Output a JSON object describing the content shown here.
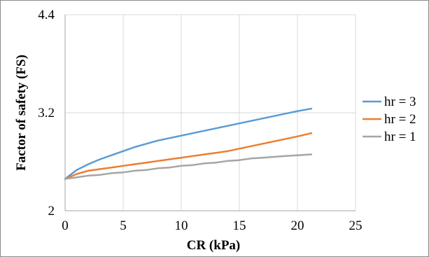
{
  "chart_data": {
    "type": "line",
    "xlabel": "CR (kPa)",
    "ylabel": "Factor of safety (FS)",
    "xlim": [
      0,
      25
    ],
    "ylim": [
      2,
      4.4
    ],
    "x_ticks": [
      "0",
      "5",
      "10",
      "15",
      "20",
      "25"
    ],
    "y_ticks": [
      "2",
      "3.2",
      "4.4"
    ],
    "x_tick_values": [
      0,
      5,
      10,
      15,
      20,
      25
    ],
    "y_tick_values": [
      2,
      3.2,
      4.4
    ],
    "grid": true,
    "legend_position": "right",
    "series": [
      {
        "name": "hr = 3",
        "color": "#5b9bd5",
        "x": [
          0,
          1,
          2,
          3,
          4,
          5,
          6,
          7,
          8,
          9,
          10,
          11,
          12,
          13,
          14,
          15,
          16,
          17,
          18,
          19,
          20,
          21.2
        ],
        "y": [
          2.39,
          2.5,
          2.57,
          2.63,
          2.68,
          2.73,
          2.78,
          2.82,
          2.86,
          2.89,
          2.92,
          2.95,
          2.98,
          3.01,
          3.04,
          3.07,
          3.1,
          3.13,
          3.16,
          3.19,
          3.22,
          3.25
        ]
      },
      {
        "name": "hr = 2",
        "color": "#ed7d31",
        "x": [
          0,
          1,
          2,
          3,
          4,
          5,
          6,
          7,
          8,
          9,
          10,
          11,
          12,
          13,
          14,
          15,
          16,
          17,
          18,
          19,
          20,
          21.2
        ],
        "y": [
          2.39,
          2.45,
          2.49,
          2.51,
          2.53,
          2.55,
          2.57,
          2.59,
          2.61,
          2.63,
          2.65,
          2.67,
          2.69,
          2.71,
          2.73,
          2.76,
          2.79,
          2.82,
          2.85,
          2.88,
          2.91,
          2.95
        ]
      },
      {
        "name": "hr = 1",
        "color": "#a5a5a5",
        "x": [
          0,
          1,
          2,
          3,
          4,
          5,
          6,
          7,
          8,
          9,
          10,
          11,
          12,
          13,
          14,
          15,
          16,
          17,
          18,
          19,
          20,
          21.2
        ],
        "y": [
          2.39,
          2.41,
          2.43,
          2.44,
          2.46,
          2.47,
          2.49,
          2.5,
          2.52,
          2.53,
          2.55,
          2.56,
          2.58,
          2.59,
          2.61,
          2.62,
          2.64,
          2.65,
          2.66,
          2.67,
          2.68,
          2.69
        ]
      }
    ]
  }
}
